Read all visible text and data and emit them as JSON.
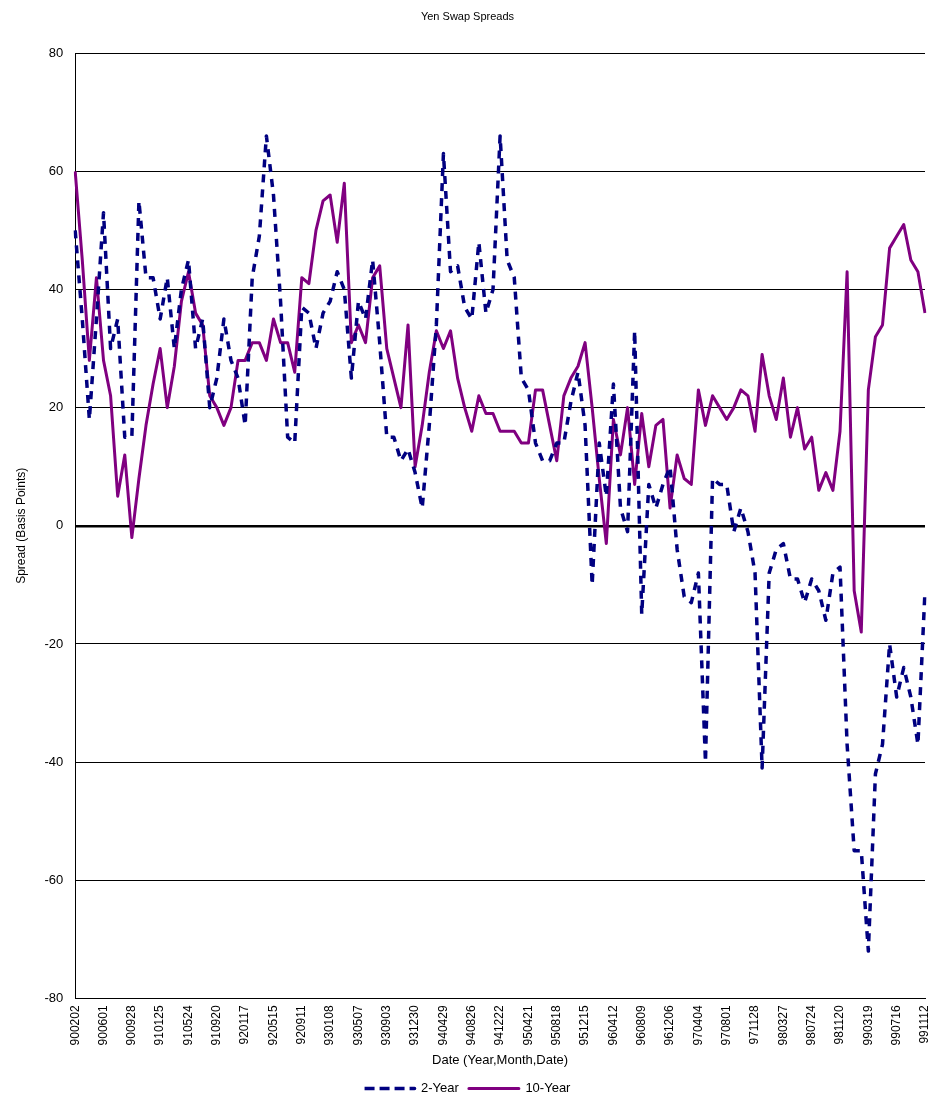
{
  "chart_data": {
    "type": "line",
    "title": "Yen Swap Spreads",
    "xlabel": "Date (Year,Month,Date)",
    "ylabel": "Spread (Basis Points)",
    "categories": [
      "900202",
      null,
      null,
      null,
      "900601",
      null,
      null,
      null,
      "900928",
      null,
      null,
      null,
      "910125",
      null,
      null,
      null,
      "910524",
      null,
      null,
      null,
      "910920",
      null,
      null,
      null,
      "920117",
      null,
      null,
      null,
      "920515",
      null,
      null,
      null,
      "920911",
      null,
      null,
      null,
      "930108",
      null,
      null,
      null,
      "930507",
      null,
      null,
      null,
      "930903",
      null,
      null,
      null,
      "931230",
      null,
      null,
      null,
      "940429",
      null,
      null,
      null,
      "940826",
      null,
      null,
      null,
      "941222",
      null,
      null,
      null,
      "950421",
      null,
      null,
      null,
      "950818",
      null,
      null,
      null,
      "951215",
      null,
      null,
      null,
      "960412",
      null,
      null,
      null,
      "960809",
      null,
      null,
      null,
      "961206",
      null,
      null,
      null,
      "970404",
      null,
      null,
      null,
      "970801",
      null,
      null,
      null,
      "971128",
      null,
      null,
      null,
      "980327",
      null,
      null,
      null,
      "980724",
      null,
      null,
      null,
      "981120",
      null,
      null,
      null,
      "990319",
      null,
      null,
      null,
      "990716",
      null,
      null,
      null,
      "991112"
    ],
    "series": [
      {
        "name": "2-Year",
        "color": "#000080",
        "line_style": "dashed",
        "values": [
          50,
          35,
          18,
          35,
          53,
          30,
          35,
          15,
          15,
          55,
          42,
          42,
          35,
          42,
          30,
          40,
          45,
          30,
          35,
          20,
          25,
          35,
          28,
          25,
          17,
          42,
          49,
          66,
          56,
          38,
          15,
          14,
          37,
          36,
          30,
          36,
          38,
          43,
          40,
          25,
          38,
          35,
          45,
          31,
          15,
          15,
          11,
          13,
          9,
          3,
          17,
          34,
          63,
          43,
          44,
          37,
          35,
          48,
          36,
          40,
          66,
          45,
          42,
          25,
          23,
          14,
          11,
          11,
          14,
          14,
          21,
          26,
          17,
          -10,
          14,
          5,
          24,
          3,
          -1,
          33,
          -15,
          7,
          3,
          7,
          10,
          -4,
          -12,
          -13,
          -8,
          -40,
          8,
          7,
          7,
          -1,
          3,
          -1,
          -8,
          -41,
          -8,
          -4,
          -3,
          -9,
          -9,
          -13,
          -9,
          -11,
          -16,
          -8,
          -7,
          -37,
          -55,
          -55,
          -72,
          -42,
          -37,
          -20,
          -29,
          -24,
          -29,
          -37,
          -11
        ]
      },
      {
        "name": "10-Year",
        "color": "#800080",
        "line_style": "solid",
        "values": [
          60,
          45,
          28,
          42,
          28,
          22,
          5,
          12,
          -2,
          8,
          17,
          24,
          30,
          20,
          27,
          38,
          43,
          36,
          34,
          22,
          20,
          17,
          20,
          28,
          28,
          31,
          31,
          28,
          35,
          31,
          31,
          26,
          42,
          41,
          50,
          55,
          56,
          48,
          58,
          31,
          34,
          31,
          42,
          44,
          30,
          25,
          20,
          34,
          10,
          17,
          26,
          33,
          30,
          33,
          25,
          20,
          16,
          22,
          19,
          19,
          16,
          16,
          16,
          14,
          14,
          23,
          23,
          17,
          11,
          22,
          25,
          27,
          31,
          20,
          8,
          -3,
          18,
          12,
          20,
          7,
          19,
          10,
          17,
          18,
          3,
          12,
          8,
          7,
          23,
          17,
          22,
          20,
          18,
          20,
          23,
          22,
          16,
          29,
          22,
          18,
          25,
          15,
          20,
          13,
          15,
          6,
          9,
          6,
          16,
          43,
          -11,
          -18,
          23,
          32,
          34,
          47,
          49,
          51,
          45,
          43,
          36
        ]
      }
    ],
    "ylim": [
      -80,
      80
    ],
    "yticks": [
      -80,
      -60,
      -40,
      -20,
      0,
      20,
      40,
      60,
      80
    ],
    "grid": "y",
    "legend": "bottom",
    "marker": "none"
  }
}
